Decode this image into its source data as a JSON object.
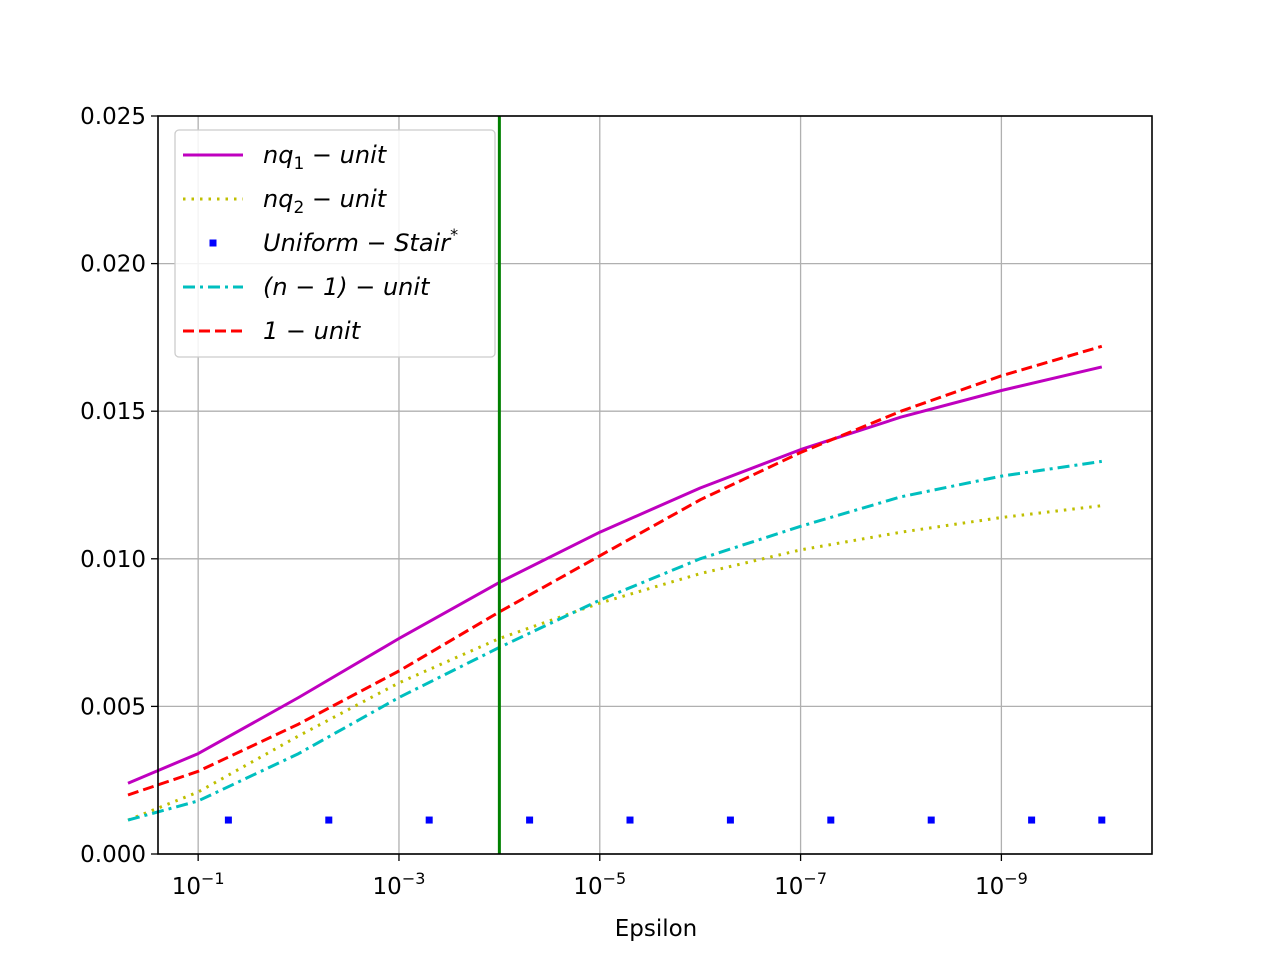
{
  "chart_data": {
    "type": "line",
    "xlabel": "Epsilon",
    "ylabel": "",
    "x_scale": "log",
    "x_axis_inverted": true,
    "xlim_exponent": [
      -0.6,
      -10.5
    ],
    "ylim": [
      0,
      0.025
    ],
    "grid": true,
    "legend_position": "upper left",
    "x_ticks": [
      {
        "value": 0.1,
        "base": "10",
        "exp": "−1"
      },
      {
        "value": 0.001,
        "base": "10",
        "exp": "−3"
      },
      {
        "value": 1e-05,
        "base": "10",
        "exp": "−5"
      },
      {
        "value": 1e-07,
        "base": "10",
        "exp": "−7"
      },
      {
        "value": 1e-09,
        "base": "10",
        "exp": "−9"
      }
    ],
    "y_ticks": [
      "0.000",
      "0.005",
      "0.010",
      "0.015",
      "0.020",
      "0.025"
    ],
    "y_tick_values": [
      0,
      0.005,
      0.01,
      0.015,
      0.02,
      0.025
    ],
    "x": [
      0.5,
      0.1,
      0.01,
      0.001,
      0.0001,
      1e-05,
      1e-06,
      1e-07,
      1e-08,
      1e-09,
      1e-10
    ],
    "series": [
      {
        "name": "nq₁ − unit",
        "legend_base": "nq",
        "legend_sub": "1",
        "legend_rest": " − unit",
        "color": "#bf00bf",
        "style": "solid",
        "values": [
          0.0024,
          0.0034,
          0.0053,
          0.0073,
          0.0092,
          0.0109,
          0.0124,
          0.0137,
          0.0148,
          0.0157,
          0.0165
        ]
      },
      {
        "name": "nq₂ − unit",
        "legend_base": "nq",
        "legend_sub": "2",
        "legend_rest": " − unit",
        "color": "#bfbf00",
        "style": "dotted",
        "values": [
          0.00115,
          0.0021,
          0.004,
          0.0058,
          0.0073,
          0.0085,
          0.0095,
          0.0103,
          0.0109,
          0.0114,
          0.0118
        ]
      },
      {
        "name": "(n − 1) − unit",
        "legend_base": "(n − 1) − unit",
        "legend_sub": "",
        "legend_rest": "",
        "color": "#00bfbf",
        "style": "dashdot",
        "values": [
          0.00115,
          0.0018,
          0.0034,
          0.0053,
          0.007,
          0.0086,
          0.01,
          0.0111,
          0.0121,
          0.0128,
          0.0133
        ]
      },
      {
        "name": "1 − unit",
        "legend_base": "1 − unit",
        "legend_sub": "",
        "legend_rest": "",
        "color": "#ff0000",
        "style": "dashed",
        "values": [
          0.002,
          0.0028,
          0.0044,
          0.0062,
          0.0082,
          0.0101,
          0.012,
          0.0136,
          0.015,
          0.0162,
          0.0172
        ]
      }
    ],
    "markers": {
      "name": "Uniform − Stair*",
      "legend_base": "Uniform − Stair",
      "legend_sup": "*",
      "color": "#0000ff",
      "x": [
        0.05,
        0.005,
        0.0005,
        5e-05,
        5e-06,
        5e-07,
        5e-08,
        5e-09,
        5e-10,
        1e-10
      ],
      "y": [
        0.00115,
        0.00115,
        0.00115,
        0.00115,
        0.00115,
        0.00115,
        0.00115,
        0.00115,
        0.00115,
        0.00115
      ]
    },
    "vertical_line": {
      "x": 0.0001,
      "color": "#008000"
    },
    "legend_order": [
      "nq₁ − unit",
      "nq₂ − unit",
      "Uniform − Stair*",
      "(n − 1) − unit",
      "1 − unit"
    ]
  }
}
